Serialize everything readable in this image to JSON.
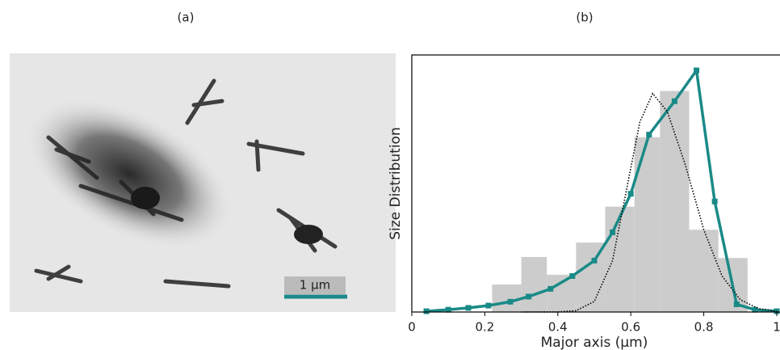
{
  "image": {
    "title": "(a)",
    "scale_bar_label": "1 µm"
  },
  "chart_data": {
    "type": "histogram",
    "title": "(b)",
    "xlabel": "Major axis (µm)",
    "ylabel": "Size Distribution",
    "bins": [
      0.22,
      0.3,
      0.37,
      0.45,
      0.53,
      0.61,
      0.68,
      0.76,
      0.84,
      0.92
    ],
    "values": [
      0.107,
      0.214,
      0.145,
      0.27,
      0.41,
      0.68,
      0.86,
      0.32,
      0.21
    ],
    "color": "#cccccc",
    "series": [
      {
        "color": "#1a8a87",
        "style": "solid-markers",
        "x": [
          0.04,
          0.1,
          0.155,
          0.21,
          0.27,
          0.32,
          0.38,
          0.44,
          0.5,
          0.55,
          0.6,
          0.65,
          0.72,
          0.78,
          0.83,
          0.89,
          0.94,
          1.0
        ],
        "values": [
          0.003,
          0.009,
          0.016,
          0.025,
          0.04,
          0.06,
          0.09,
          0.14,
          0.2,
          0.31,
          0.46,
          0.69,
          0.82,
          0.94,
          0.43,
          0.03,
          0.009,
          0.003
        ]
      },
      {
        "color": "#000000",
        "style": "dotted",
        "x": [
          0.3,
          0.4,
          0.45,
          0.5,
          0.55,
          0.6,
          0.625,
          0.66,
          0.7,
          0.75,
          0.8,
          0.85,
          0.9,
          0.95,
          1.0
        ],
        "values": [
          0,
          0.0003,
          0.005,
          0.041,
          0.2,
          0.56,
          0.74,
          0.85,
          0.78,
          0.57,
          0.32,
          0.14,
          0.048,
          0.013,
          0.003
        ]
      }
    ],
    "xlim": [
      0,
      1
    ],
    "xticks": [
      0,
      0.2,
      0.4,
      0.6,
      0.8,
      1
    ],
    "ylim": [
      0,
      1
    ]
  }
}
